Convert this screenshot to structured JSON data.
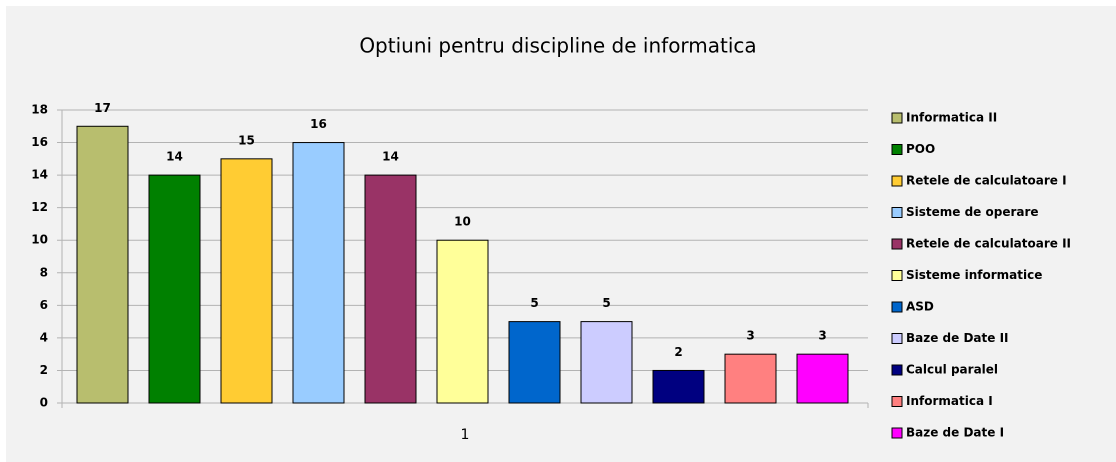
{
  "chart_data": {
    "type": "bar",
    "title": "Optiuni pentru discipline de informatica",
    "categories": [
      "1"
    ],
    "series": [
      {
        "name": "Informatica II",
        "color": "#b8be6e",
        "values": [
          17
        ]
      },
      {
        "name": "POO",
        "color": "#008000",
        "values": [
          14
        ]
      },
      {
        "name": "Retele de calculatoare I",
        "color": "#ffcc33",
        "values": [
          15
        ]
      },
      {
        "name": "Sisteme de operare",
        "color": "#99ccff",
        "values": [
          16
        ]
      },
      {
        "name": "Retele de calculatoare II",
        "color": "#993366",
        "values": [
          14
        ]
      },
      {
        "name": "Sisteme informatice",
        "color": "#ffff99",
        "values": [
          10
        ]
      },
      {
        "name": "ASD",
        "color": "#0066cc",
        "values": [
          5
        ]
      },
      {
        "name": "Baze de Date II",
        "color": "#ccccff",
        "values": [
          5
        ]
      },
      {
        "name": "Calcul paralel",
        "color": "#000080",
        "values": [
          2
        ]
      },
      {
        "name": "Informatica I",
        "color": "#ff8080",
        "values": [
          3
        ]
      },
      {
        "name": "Baze de Date I",
        "color": "#ff00ff",
        "values": [
          3
        ]
      }
    ],
    "ylim": [
      0,
      18
    ],
    "yticks": [
      0,
      2,
      4,
      6,
      8,
      10,
      12,
      14,
      16,
      18
    ],
    "grid": true,
    "legend": "right"
  }
}
